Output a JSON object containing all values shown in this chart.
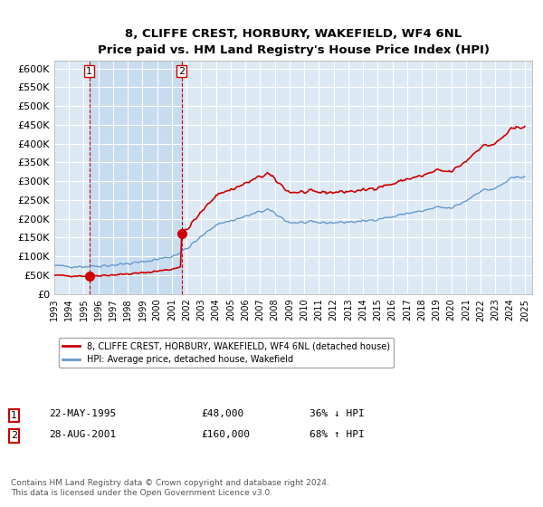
{
  "title": "8, CLIFFE CREST, HORBURY, WAKEFIELD, WF4 6NL",
  "subtitle": "Price paid vs. HM Land Registry's House Price Index (HPI)",
  "legend_line1": "8, CLIFFE CREST, HORBURY, WAKEFIELD, WF4 6NL (detached house)",
  "legend_line2": "HPI: Average price, detached house, Wakefield",
  "transaction1_date": "22-MAY-1995",
  "transaction1_price": 48000,
  "transaction1_hpi": "36% ↓ HPI",
  "transaction2_date": "28-AUG-2001",
  "transaction2_price": 160000,
  "transaction2_hpi": "68% ↑ HPI",
  "footer": "Contains HM Land Registry data © Crown copyright and database right 2024.\nThis data is licensed under the Open Government Licence v3.0.",
  "red_color": "#cc0000",
  "blue_color": "#6699cc",
  "background_plot": "#dce9f5",
  "background_shade": "#c8dcf0",
  "grid_color": "#ffffff",
  "ylim_max": 620000,
  "t1_year": 1995.38,
  "t2_year": 2001.65
}
